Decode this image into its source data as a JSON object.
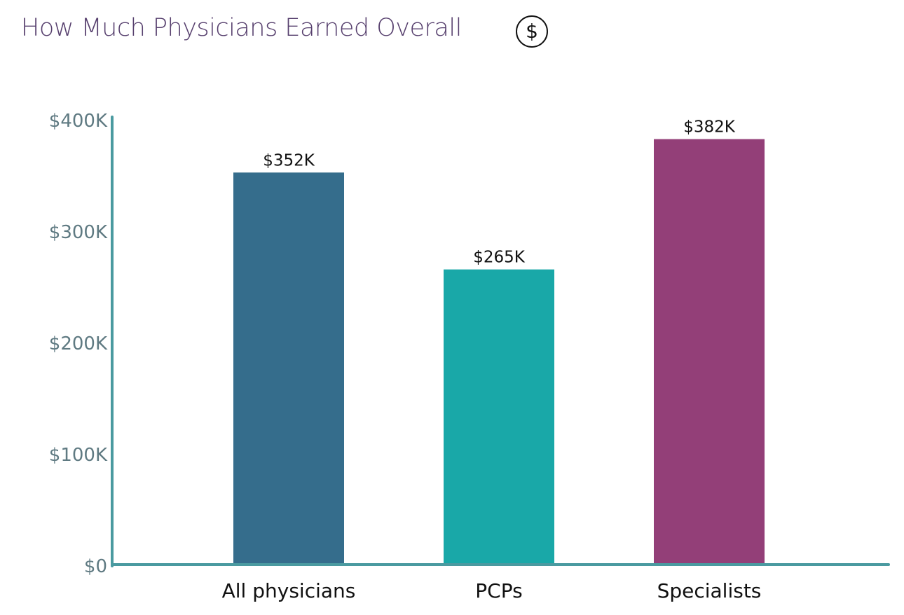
{
  "chart_data": {
    "type": "bar",
    "title": "How Much Physicians Earned Overall",
    "title_icon": "dollar-circle-icon",
    "categories": [
      "All physicians",
      "PCPs",
      "Specialists"
    ],
    "values": [
      352,
      265,
      382
    ],
    "value_unit": "thousand USD",
    "data_labels": [
      "$352K",
      "$265K",
      "$382K"
    ],
    "colors": [
      "#356d8c",
      "#19a8a8",
      "#933f78"
    ],
    "axis_color": "#4a9aa0",
    "ylim": [
      0,
      400
    ],
    "yticks": [
      0,
      100,
      200,
      300,
      400
    ],
    "ytick_labels": [
      "$0",
      "$100K",
      "$200K",
      "$300K",
      "$400K"
    ],
    "grid": false,
    "xlabel": "",
    "ylabel": ""
  }
}
